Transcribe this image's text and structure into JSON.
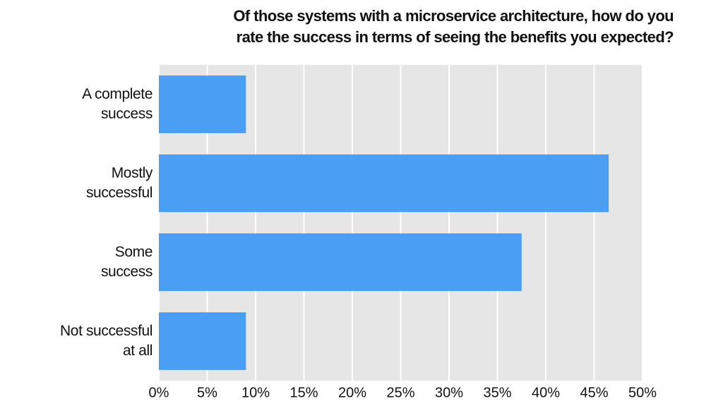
{
  "chart_data": {
    "type": "hbar",
    "title": "Of those systems with a microservice architecture, how do you\nrate the success in terms of seeing the benefits you expected?",
    "categories": [
      "A complete\nsuccess",
      "Mostly\nsuccessful",
      "Some\nsuccess",
      "Not successful\nat all"
    ],
    "values": [
      9,
      46.5,
      37.5,
      9
    ],
    "color": "#4a9ff5",
    "xlim": [
      0,
      50
    ],
    "xticks": [
      {
        "value": 0,
        "label": "0%"
      },
      {
        "value": 5,
        "label": "5%"
      },
      {
        "value": 10,
        "label": "10%"
      },
      {
        "value": 15,
        "label": "15%"
      },
      {
        "value": 20,
        "label": "20%"
      },
      {
        "value": 25,
        "label": "25%"
      },
      {
        "value": 30,
        "label": "30%"
      },
      {
        "value": 35,
        "label": "35%"
      },
      {
        "value": 40,
        "label": "40%"
      },
      {
        "value": 45,
        "label": "45%"
      },
      {
        "value": 50,
        "label": "50%"
      }
    ],
    "grid": true
  }
}
